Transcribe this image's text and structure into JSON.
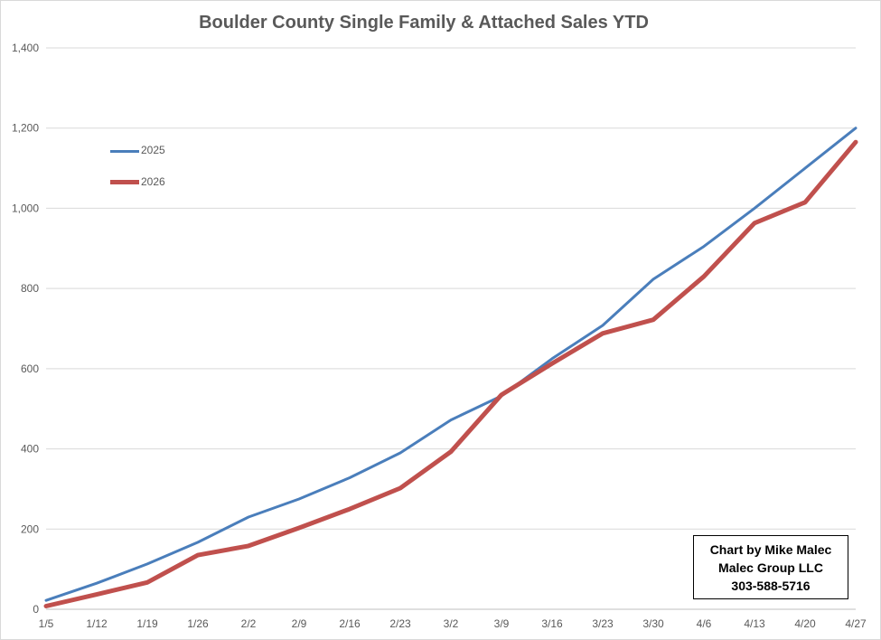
{
  "chart_data": {
    "type": "line",
    "title": "Boulder County Single Family & Attached Sales YTD",
    "xlabel": "",
    "ylabel": "",
    "ylim": [
      0,
      1400
    ],
    "y_ticks": [
      "0",
      "200",
      "400",
      "600",
      "800",
      "1,000",
      "1,200",
      "1,400"
    ],
    "y_tick_values": [
      0,
      200,
      400,
      600,
      800,
      1000,
      1200,
      1400
    ],
    "categories": [
      "1/5",
      "1/12",
      "1/19",
      "1/26",
      "2/2",
      "2/9",
      "2/16",
      "2/23",
      "3/2",
      "3/9",
      "3/16",
      "3/23",
      "3/30",
      "4/6",
      "4/13",
      "4/20",
      "4/27"
    ],
    "series": [
      {
        "name": "2025",
        "color": "#4a7ebb",
        "values": [
          22,
          65,
          113,
          167,
          230,
          275,
          328,
          390,
          472,
          532,
          625,
          708,
          823,
          905,
          1000,
          1100,
          1200
        ]
      },
      {
        "name": "2026",
        "color": "#c0504d",
        "values": [
          8,
          37,
          67,
          135,
          158,
          203,
          250,
          302,
          393,
          535,
          613,
          688,
          722,
          830,
          963,
          1015,
          1165
        ]
      }
    ],
    "grid": true,
    "legend_position": "top-left"
  },
  "credit_box": {
    "line1": "Chart by Mike Malec",
    "line2": "Malec Group LLC",
    "line3": "303-588-5716"
  }
}
